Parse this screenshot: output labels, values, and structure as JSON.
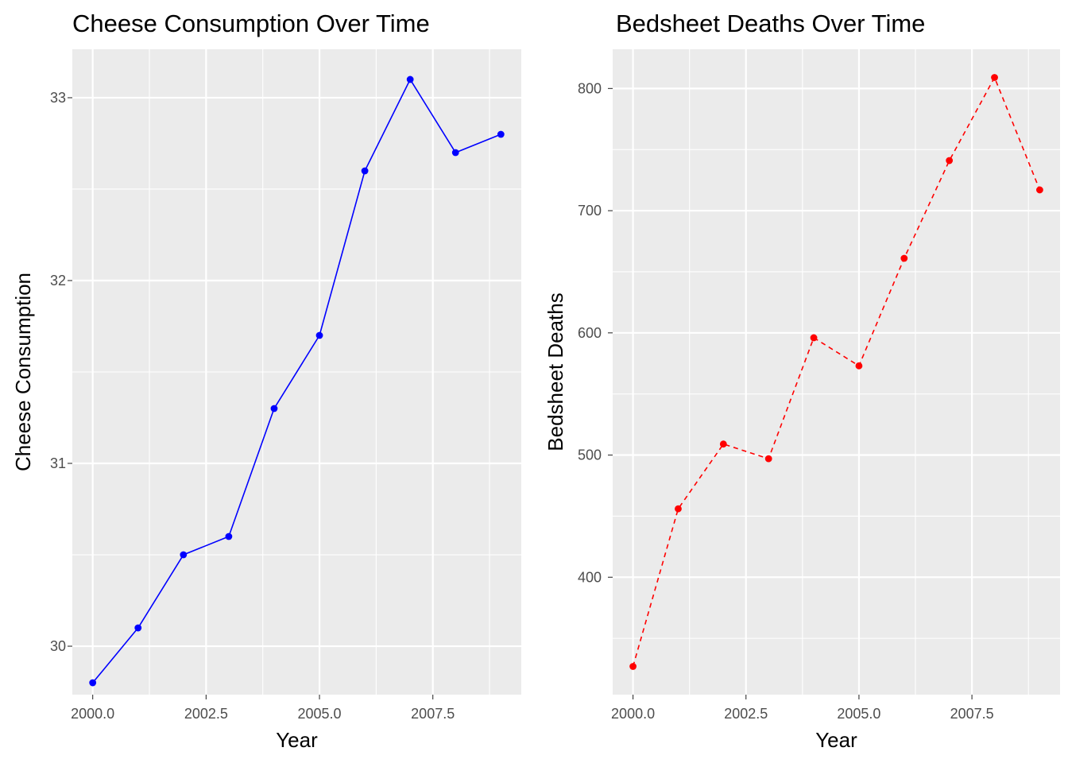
{
  "chart_data": [
    {
      "type": "line",
      "title": "Cheese Consumption Over Time",
      "xlabel": "Year",
      "ylabel": "Cheese Consumption",
      "x": [
        2000,
        2001,
        2002,
        2003,
        2004,
        2005,
        2006,
        2007,
        2008,
        2009
      ],
      "series": [
        {
          "values": [
            29.8,
            30.1,
            30.5,
            30.6,
            31.3,
            31.7,
            32.6,
            33.1,
            32.7,
            32.8
          ],
          "color": "#0000FF",
          "line_style": "solid"
        }
      ],
      "xlim": [
        1999.55,
        2009.45
      ],
      "ylim": [
        29.735,
        33.265
      ],
      "x_ticks": [
        2000,
        2002.5,
        2005,
        2007.5
      ],
      "x_tick_labels": [
        "2000.0",
        "2002.5",
        "2005.0",
        "2007.5"
      ],
      "y_ticks": [
        30,
        31,
        32,
        33
      ],
      "y_tick_labels": [
        "30",
        "31",
        "32",
        "33"
      ],
      "grid": true,
      "legend": "none"
    },
    {
      "type": "line",
      "title": "Bedsheet Deaths Over Time",
      "xlabel": "Year",
      "ylabel": "Bedsheet Deaths",
      "x": [
        2000,
        2001,
        2002,
        2003,
        2004,
        2005,
        2006,
        2007,
        2008,
        2009
      ],
      "series": [
        {
          "values": [
            327,
            456,
            509,
            497,
            596,
            573,
            661,
            741,
            809,
            717
          ],
          "color": "#FF0000",
          "line_style": "dashed"
        }
      ],
      "xlim": [
        1999.55,
        2009.45
      ],
      "ylim": [
        303.9,
        832.1
      ],
      "x_ticks": [
        2000,
        2002.5,
        2005,
        2007.5
      ],
      "x_tick_labels": [
        "2000.0",
        "2002.5",
        "2005.0",
        "2007.5"
      ],
      "y_ticks": [
        400,
        500,
        600,
        700,
        800
      ],
      "y_tick_labels": [
        "400",
        "500",
        "600",
        "700",
        "800"
      ],
      "grid": true,
      "legend": "none"
    }
  ]
}
